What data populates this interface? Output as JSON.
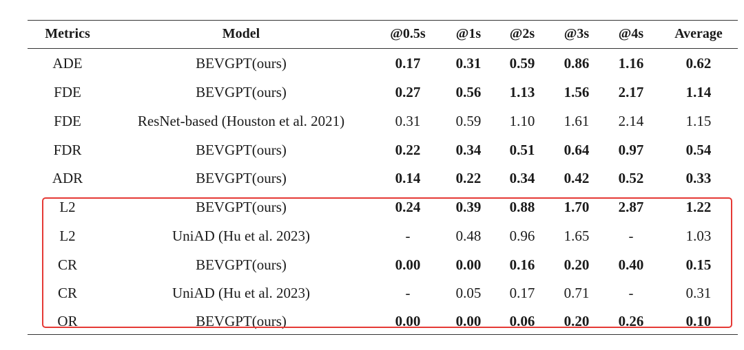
{
  "columns": [
    "Metrics",
    "Model",
    "@0.5s",
    "@1s",
    "@2s",
    "@3s",
    "@4s",
    "Average"
  ],
  "rows": [
    {
      "metric": "ADE",
      "model": "BEVGPT(ours)",
      "values": [
        "0.17",
        "0.31",
        "0.59",
        "0.86",
        "1.16",
        "0.62"
      ],
      "bold": true
    },
    {
      "metric": "FDE",
      "model": "BEVGPT(ours)",
      "values": [
        "0.27",
        "0.56",
        "1.13",
        "1.56",
        "2.17",
        "1.14"
      ],
      "bold": true
    },
    {
      "metric": "FDE",
      "model": "ResNet-based (Houston et al. 2021)",
      "values": [
        "0.31",
        "0.59",
        "1.10",
        "1.61",
        "2.14",
        "1.15"
      ],
      "bold": false
    },
    {
      "metric": "FDR",
      "model": "BEVGPT(ours)",
      "values": [
        "0.22",
        "0.34",
        "0.51",
        "0.64",
        "0.97",
        "0.54"
      ],
      "bold": true
    },
    {
      "metric": "ADR",
      "model": "BEVGPT(ours)",
      "values": [
        "0.14",
        "0.22",
        "0.34",
        "0.42",
        "0.52",
        "0.33"
      ],
      "bold": true
    },
    {
      "metric": "L2",
      "model": "BEVGPT(ours)",
      "values": [
        "0.24",
        "0.39",
        "0.88",
        "1.70",
        "2.87",
        "1.22"
      ],
      "bold": true
    },
    {
      "metric": "L2",
      "model": "UniAD (Hu et al. 2023)",
      "values": [
        "-",
        "0.48",
        "0.96",
        "1.65",
        "-",
        "1.03"
      ],
      "bold": false
    },
    {
      "metric": "CR",
      "model": "BEVGPT(ours)",
      "values": [
        "0.00",
        "0.00",
        "0.16",
        "0.20",
        "0.40",
        "0.15"
      ],
      "bold": true
    },
    {
      "metric": "CR",
      "model": "UniAD (Hu et al. 2023)",
      "values": [
        "-",
        "0.05",
        "0.17",
        "0.71",
        "-",
        "0.31"
      ],
      "bold": false
    },
    {
      "metric": "OR",
      "model": "BEVGPT(ours)",
      "values": [
        "0.00",
        "0.00",
        "0.06",
        "0.20",
        "0.26",
        "0.10"
      ],
      "bold": true
    }
  ],
  "highlight_color": "#e53935"
}
